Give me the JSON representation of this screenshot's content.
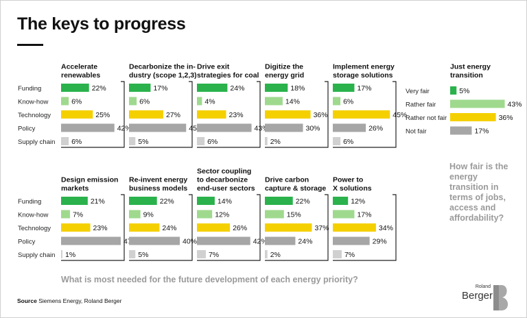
{
  "page": {
    "title": "The keys to progress",
    "question_needs": "What is most needed for the future development of each energy priority?",
    "question_fair": "How fair is the energy transition in terms of jobs, access and affordability?",
    "source_label": "Source",
    "source_text": "Siemens Energy, Roland Berger",
    "logo_small": "Roland",
    "logo_word": "Berger"
  },
  "chart_data": [
    {
      "type": "bar",
      "title": "What is most needed for the future development of each energy priority?",
      "categories": [
        "Funding",
        "Know-how",
        "Technology",
        "Policy",
        "Supply chain"
      ],
      "unit": "%",
      "colors": [
        "#2bb24c",
        "#9fd98e",
        "#f5d000",
        "#a6a6a6",
        "#d0d0d0"
      ],
      "panels": [
        {
          "title": [
            "Accelerate",
            "renewables"
          ],
          "values": [
            22,
            6,
            25,
            42,
            6
          ]
        },
        {
          "title": [
            "Decarbonize the in-",
            "dustry (scope 1,2,3)"
          ],
          "values": [
            17,
            6,
            27,
            45,
            5
          ]
        },
        {
          "title": [
            "Drive exit",
            "strategies for coal"
          ],
          "values": [
            24,
            4,
            23,
            43,
            6
          ]
        },
        {
          "title": [
            "Digitize the",
            "energy grid"
          ],
          "values": [
            18,
            14,
            36,
            30,
            2
          ]
        },
        {
          "title": [
            "Implement energy",
            "storage solutions"
          ],
          "values": [
            17,
            6,
            45,
            26,
            6
          ]
        },
        {
          "title": [
            "Design emission",
            "markets"
          ],
          "values": [
            21,
            7,
            23,
            47,
            1
          ]
        },
        {
          "title": [
            "Re-invent energy",
            "business models"
          ],
          "values": [
            22,
            9,
            24,
            40,
            5
          ]
        },
        {
          "title": [
            "Sector coupling",
            "to decarbonize",
            "end-user sectors"
          ],
          "values": [
            14,
            12,
            26,
            42,
            7
          ]
        },
        {
          "title": [
            "Drive carbon",
            "capture & storage"
          ],
          "values": [
            22,
            15,
            37,
            24,
            2
          ]
        },
        {
          "title": [
            "Power to",
            "X solutions"
          ],
          "values": [
            12,
            17,
            34,
            29,
            7
          ]
        }
      ]
    },
    {
      "type": "bar",
      "title": [
        "Just energy",
        "transition"
      ],
      "subtitle": "How fair is the energy transition in terms of jobs, access and affordability?",
      "categories": [
        "Very fair",
        "Rather fair",
        "Rather not fair",
        "Not fair"
      ],
      "values": [
        5,
        43,
        36,
        17
      ],
      "unit": "%",
      "colors": [
        "#2bb24c",
        "#9fd98e",
        "#f5d000",
        "#a6a6a6"
      ]
    }
  ]
}
